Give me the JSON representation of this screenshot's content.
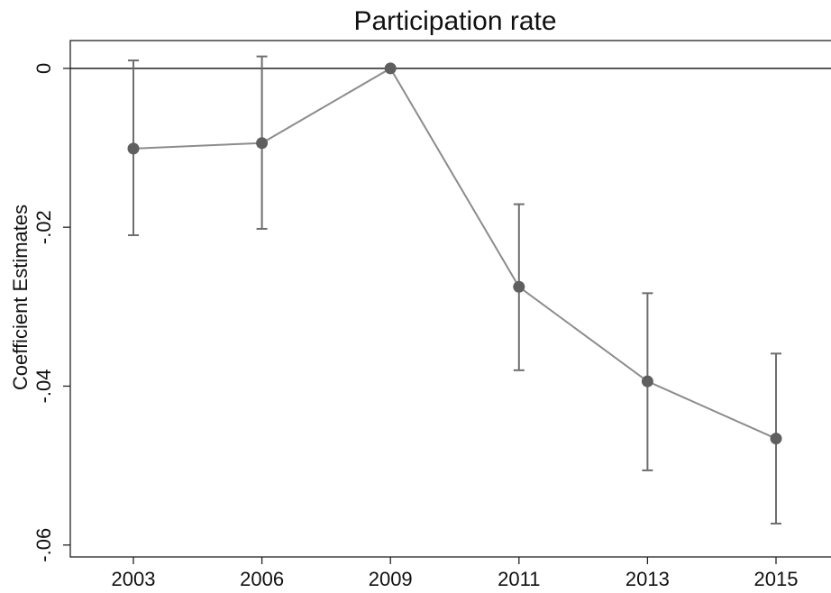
{
  "chart_data": {
    "type": "line",
    "title": "Participation rate",
    "xlabel": "",
    "ylabel": "Coefficient Estimates",
    "categories": [
      "2003",
      "2006",
      "2009",
      "2011",
      "2013",
      "2015"
    ],
    "series": [
      {
        "values": [
          -0.0101,
          -0.0094,
          0.0,
          -0.0275,
          -0.0394,
          -0.0466
        ],
        "ci_low": [
          -0.021,
          -0.0202,
          0.0,
          -0.038,
          -0.0506,
          -0.0573
        ],
        "ci_high": [
          0.001,
          0.0015,
          0.0,
          -0.0171,
          -0.0283,
          -0.0359
        ]
      }
    ],
    "yticks": [
      0,
      -0.02,
      -0.04,
      -0.06
    ],
    "ytick_labels": [
      "0",
      "-.02",
      "-.04",
      "-.06"
    ],
    "ylim": [
      -0.0615,
      0.0035
    ],
    "reference_line": 0,
    "grid": false,
    "colors": {
      "line": "#8c8c8c",
      "marker": "#5f5f5f",
      "ci": "#6e6e6e",
      "axis": "#222222"
    }
  }
}
